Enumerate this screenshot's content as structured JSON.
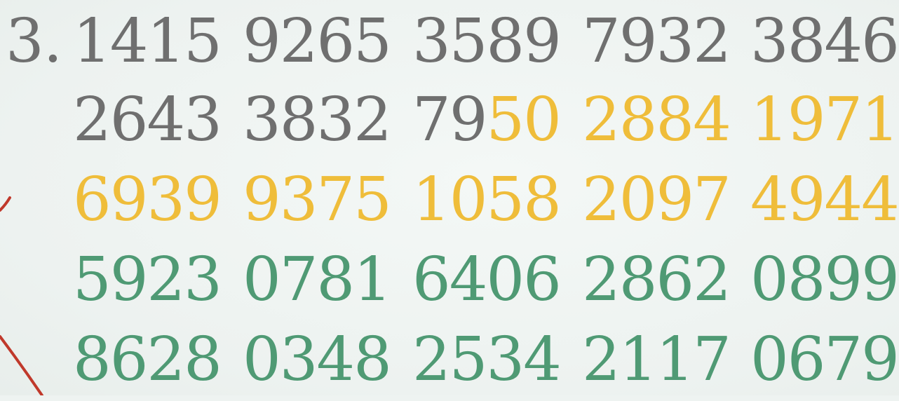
{
  "colors": {
    "gray": "#6f6f6f",
    "yellow": "#efbd3a",
    "green": "#4f9a74",
    "curve": "#c0392b"
  },
  "prefix": "3.",
  "rows": [
    [
      [
        {
          "text": "1415",
          "color": "gray"
        }
      ],
      [
        {
          "text": "9265",
          "color": "gray"
        }
      ],
      [
        {
          "text": "3589",
          "color": "gray"
        }
      ],
      [
        {
          "text": "7932",
          "color": "gray"
        }
      ],
      [
        {
          "text": "3846",
          "color": "gray"
        }
      ]
    ],
    [
      [
        {
          "text": "2643",
          "color": "gray"
        }
      ],
      [
        {
          "text": "3832",
          "color": "gray"
        }
      ],
      [
        {
          "text": "79",
          "color": "gray"
        },
        {
          "text": "50",
          "color": "yellow"
        }
      ],
      [
        {
          "text": "2884",
          "color": "yellow"
        }
      ],
      [
        {
          "text": "1971",
          "color": "yellow"
        }
      ]
    ],
    [
      [
        {
          "text": "6939",
          "color": "yellow"
        }
      ],
      [
        {
          "text": "9375",
          "color": "yellow"
        }
      ],
      [
        {
          "text": "1058",
          "color": "yellow"
        }
      ],
      [
        {
          "text": "2097",
          "color": "yellow"
        }
      ],
      [
        {
          "text": "4944",
          "color": "yellow"
        }
      ]
    ],
    [
      [
        {
          "text": "5923",
          "color": "green"
        }
      ],
      [
        {
          "text": "0781",
          "color": "green"
        }
      ],
      [
        {
          "text": "6406",
          "color": "green"
        }
      ],
      [
        {
          "text": "2862",
          "color": "green"
        }
      ],
      [
        {
          "text": "0899",
          "color": "green"
        }
      ]
    ],
    [
      [
        {
          "text": "8628",
          "color": "green"
        }
      ],
      [
        {
          "text": "0348",
          "color": "green"
        }
      ],
      [
        {
          "text": "2534",
          "color": "green"
        }
      ],
      [
        {
          "text": "2117",
          "color": "green"
        }
      ],
      [
        {
          "text": "0679",
          "color": "green"
        }
      ]
    ]
  ]
}
